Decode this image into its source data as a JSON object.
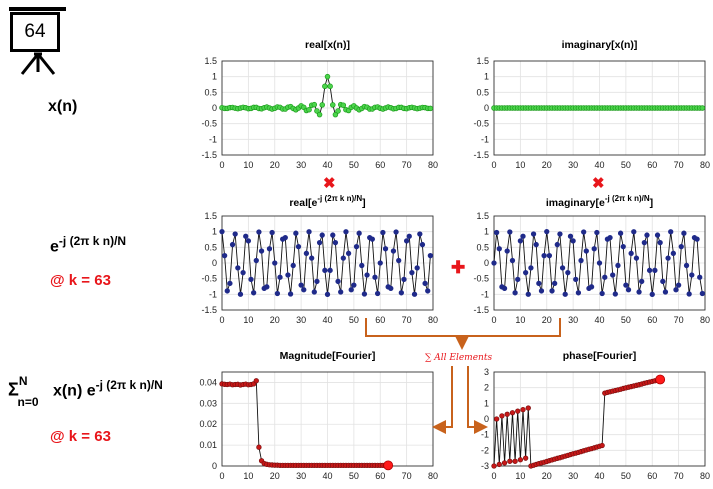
{
  "frame": {
    "number": "64"
  },
  "rows": {
    "xn": {
      "label": "x(n)"
    },
    "kernel": {
      "base": "e",
      "exponent": "-j (2π k n)/N",
      "k_label": "@ k = 63"
    },
    "sum": {
      "sigma": "Σ",
      "upper": "N",
      "lower": "n=0",
      "body": "x(n) e",
      "exponent": "-j (2π k n)/N",
      "k_label": "@ k = 63"
    }
  },
  "operators": {
    "multiply_symbol": "✖",
    "add_symbol": "✚",
    "sum_annotation": "∑ All Elements"
  },
  "colors": {
    "accent_red": "#e8161b",
    "arrow_orange": "#c8621c",
    "signal_green": "#1a9b1a",
    "kernel_navy": "#1f2a8a",
    "fourier_red": "#c81818"
  },
  "chart_data": [
    {
      "id": "real_x",
      "type": "line",
      "title": "real[x(n)]",
      "xlim": [
        0,
        80
      ],
      "ylim": [
        -1.5,
        1.5
      ],
      "xticks": [
        "0",
        "10",
        "20",
        "30",
        "40",
        "50",
        "60",
        "70",
        "80"
      ],
      "yticks": [
        "1.5",
        "1",
        "0.5",
        "0",
        "-0.5",
        "-1",
        "-1.5"
      ],
      "grid": true,
      "formula": "sinc",
      "center": 40,
      "n_points": 80
    },
    {
      "id": "imag_x",
      "type": "line",
      "title": "imaginary[x(n)]",
      "xlim": [
        0,
        80
      ],
      "ylim": [
        -1.5,
        1.5
      ],
      "xticks": [
        "0",
        "10",
        "20",
        "30",
        "40",
        "50",
        "60",
        "70",
        "80"
      ],
      "yticks": [
        "1.5",
        "1",
        "0.5",
        "0",
        "-0.5",
        "-1",
        "-1.5"
      ],
      "grid": true,
      "formula": "zero",
      "n_points": 80
    },
    {
      "id": "real_kernel",
      "type": "line",
      "title_base": "real[e",
      "title_exp": "-j (2π k n)/N",
      "title_end": "]",
      "xlim": [
        0,
        80
      ],
      "ylim": [
        -1.5,
        1.5
      ],
      "xticks": [
        "0",
        "10",
        "20",
        "30",
        "40",
        "50",
        "60",
        "70",
        "80"
      ],
      "yticks": [
        "1.5",
        "1",
        "0.5",
        "0",
        "-0.5",
        "-1",
        "-1.5"
      ],
      "grid": true,
      "formula": "cos",
      "k": 63,
      "N": 80,
      "n_points": 80
    },
    {
      "id": "imag_kernel",
      "type": "line",
      "title_base": "imaginary[e",
      "title_exp": "-j (2π k n)/N",
      "title_end": "]",
      "xlim": [
        0,
        80
      ],
      "ylim": [
        -1.5,
        1.5
      ],
      "xticks": [
        "0",
        "10",
        "20",
        "30",
        "40",
        "50",
        "60",
        "70",
        "80"
      ],
      "yticks": [
        "1.5",
        "1",
        "0.5",
        "0",
        "-0.5",
        "-1",
        "-1.5"
      ],
      "grid": true,
      "formula": "sin",
      "k": 63,
      "N": 80,
      "n_points": 80
    },
    {
      "id": "magnitude",
      "type": "line",
      "title": "Magnitude[Fourier]",
      "xlim": [
        0,
        80
      ],
      "ylim": [
        0,
        0.045
      ],
      "xticks": [
        "0",
        "10",
        "20",
        "30",
        "40",
        "50",
        "60",
        "70",
        "80"
      ],
      "yticks": [
        "0.04",
        "0.03",
        "0.02",
        "0.01",
        "0"
      ],
      "grid": true,
      "x": [
        0,
        1,
        2,
        3,
        4,
        5,
        6,
        7,
        8,
        9,
        10,
        11,
        12,
        13,
        14,
        15,
        16,
        17,
        18,
        19,
        20,
        21,
        22,
        23,
        24,
        25,
        26,
        27,
        28,
        29,
        30,
        31,
        32,
        33,
        34,
        35,
        36,
        37,
        38,
        39,
        40,
        41,
        42,
        43,
        44,
        45,
        46,
        47,
        48,
        49,
        50,
        51,
        52,
        53,
        54,
        55,
        56,
        57,
        58,
        59,
        60,
        61,
        62,
        63
      ],
      "values": [
        0.0393,
        0.0391,
        0.039,
        0.0392,
        0.0389,
        0.039,
        0.0391,
        0.0388,
        0.039,
        0.0392,
        0.0389,
        0.039,
        0.0393,
        0.0408,
        0.009,
        0.0025,
        0.0012,
        0.0008,
        0.0006,
        0.0005,
        0.0004,
        0.0004,
        0.0003,
        0.0003,
        0.0003,
        0.0003,
        0.0003,
        0.0003,
        0.0003,
        0.0003,
        0.0003,
        0.0003,
        0.0003,
        0.0003,
        0.0003,
        0.0003,
        0.0003,
        0.0003,
        0.0003,
        0.0003,
        0.0003,
        0.0003,
        0.0003,
        0.0003,
        0.0003,
        0.0003,
        0.0003,
        0.0003,
        0.0003,
        0.0003,
        0.0003,
        0.0003,
        0.0003,
        0.0003,
        0.0003,
        0.0003,
        0.0003,
        0.0003,
        0.0003,
        0.0003,
        0.0003,
        0.0003,
        0.0003,
        0.0003
      ],
      "highlight_last": true
    },
    {
      "id": "phase",
      "type": "line",
      "title": "phase[Fourier]",
      "xlim": [
        0,
        80
      ],
      "ylim": [
        -3,
        3
      ],
      "xticks": [
        "0",
        "10",
        "20",
        "30",
        "40",
        "50",
        "60",
        "70",
        "80"
      ],
      "yticks": [
        "3",
        "2",
        "1",
        "0",
        "-1",
        "-2",
        "-3"
      ],
      "grid": true,
      "x": [
        0,
        1,
        2,
        3,
        4,
        5,
        6,
        7,
        8,
        9,
        10,
        11,
        12,
        13,
        14,
        15,
        16,
        17,
        18,
        19,
        20,
        21,
        22,
        23,
        24,
        25,
        26,
        27,
        28,
        29,
        30,
        31,
        32,
        33,
        34,
        35,
        36,
        37,
        38,
        39,
        40,
        41,
        42,
        43,
        44,
        45,
        46,
        47,
        48,
        49,
        50,
        51,
        52,
        53,
        54,
        55,
        56,
        57,
        58,
        59,
        60,
        61,
        62,
        63
      ],
      "values": [
        -3.0,
        0.0,
        -2.9,
        0.2,
        -2.8,
        0.3,
        -2.7,
        0.4,
        -2.7,
        0.5,
        -2.6,
        0.6,
        -2.5,
        0.7,
        -3.0,
        -2.95,
        -2.9,
        -2.85,
        -2.8,
        -2.76,
        -2.71,
        -2.66,
        -2.61,
        -2.56,
        -2.51,
        -2.47,
        -2.42,
        -2.37,
        -2.32,
        -2.27,
        -2.22,
        -2.18,
        -2.13,
        -2.08,
        -2.03,
        -1.98,
        -1.93,
        -1.89,
        -1.84,
        -1.79,
        -1.74,
        -1.69,
        1.65,
        1.7,
        1.74,
        1.78,
        1.82,
        1.86,
        1.9,
        1.95,
        1.99,
        2.03,
        2.07,
        2.11,
        2.15,
        2.19,
        2.23,
        2.28,
        2.32,
        2.36,
        2.4,
        2.44,
        2.48,
        2.52
      ],
      "highlight_last": true
    }
  ]
}
